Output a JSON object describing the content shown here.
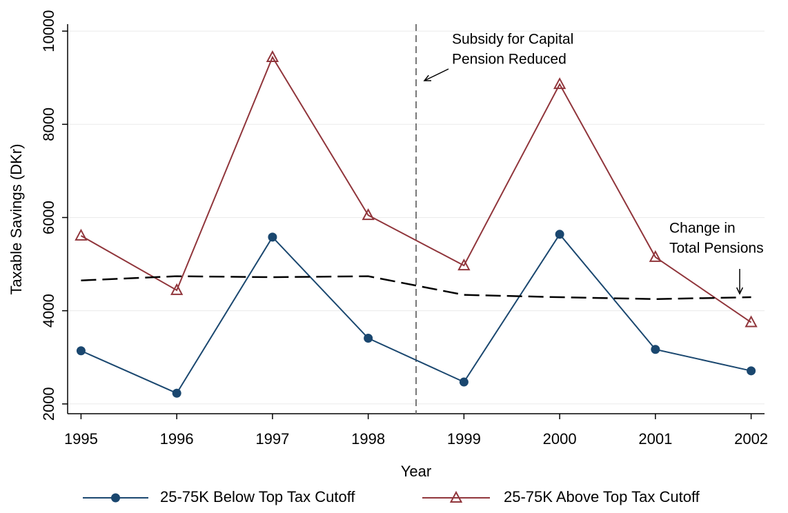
{
  "chart_data": {
    "type": "line",
    "x_label": "Year",
    "y_label": "Taxable Savings (DKr)",
    "x": [
      1995,
      1996,
      1997,
      1998,
      1999,
      2000,
      2001,
      2002
    ],
    "series": [
      {
        "name": "25-75K Below Top Tax Cutoff",
        "color": "#1a476f",
        "marker": "circle",
        "values": [
          3140,
          2230,
          5580,
          3410,
          2470,
          5640,
          3170,
          2710
        ]
      },
      {
        "name": "25-75K Above Top Tax Cutoff",
        "color": "#90353b",
        "marker": "triangle",
        "values": [
          5610,
          4440,
          9440,
          6050,
          4970,
          8860,
          5150,
          3750
        ]
      },
      {
        "color": "#000000",
        "dash": true,
        "values": [
          4650,
          4740,
          4720,
          4740,
          4340,
          4290,
          4250,
          4290
        ]
      }
    ],
    "xlim": [
      1994.86,
      2002.14
    ],
    "ylim": [
      1790,
      10150
    ],
    "xticks": [
      1995,
      1996,
      1997,
      1998,
      1999,
      2000,
      2001,
      2002
    ],
    "yticks": [
      2000,
      4000,
      6000,
      8000,
      10000
    ],
    "grid": true,
    "legend": "bottom",
    "vline": 1998.5,
    "annotations": [
      [
        "Subsidy for Capital",
        "Pension Reduced"
      ],
      [
        "Change in",
        "Total Pensions"
      ]
    ]
  }
}
